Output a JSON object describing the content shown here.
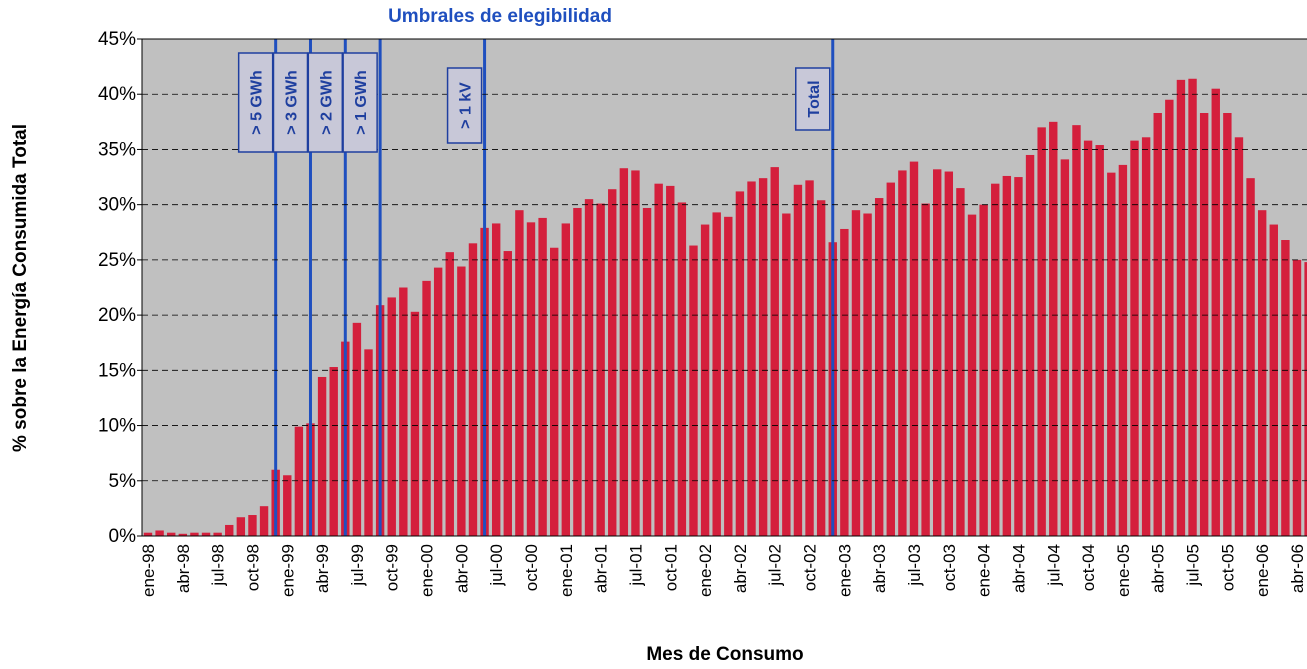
{
  "chart_data": {
    "type": "bar",
    "title": "Umbrales de elegibilidad",
    "xlabel": "Mes de Consumo",
    "ylabel": "% sobre la Energía Consumida Total",
    "color": "#d41f3c",
    "background": "#c0c0c0",
    "grid": true,
    "categories": [
      "ene-98",
      null,
      null,
      "abr-98",
      null,
      null,
      "jul-98",
      null,
      null,
      "oct-98",
      null,
      null,
      "ene-99",
      null,
      null,
      "abr-99",
      null,
      null,
      "jul-99",
      null,
      null,
      "oct-99",
      null,
      null,
      "ene-00",
      null,
      null,
      "abr-00",
      null,
      null,
      "jul-00",
      null,
      null,
      "oct-00",
      null,
      null,
      "ene-01",
      null,
      null,
      "abr-01",
      null,
      null,
      "jul-01",
      null,
      null,
      "oct-01",
      null,
      null,
      "ene-02",
      null,
      null,
      "abr-02",
      null,
      null,
      "jul-02",
      null,
      null,
      "oct-02",
      null,
      null,
      "ene-03",
      null,
      null,
      "abr-03",
      null,
      null,
      "jul-03",
      null,
      null,
      "oct-03",
      null,
      null,
      "ene-04",
      null,
      null,
      "abr-04",
      null,
      null,
      "jul-04",
      null,
      null,
      "oct-04",
      null,
      null,
      "ene-05",
      null,
      null,
      "abr-05",
      null,
      null,
      "jul-05",
      null,
      null,
      "oct-05",
      null,
      null,
      "ene-06",
      null,
      null,
      "abr-06",
      null
    ],
    "values": [
      0.3,
      0.5,
      0.3,
      0.2,
      0.3,
      0.3,
      0.3,
      1.0,
      1.7,
      1.9,
      2.7,
      6.0,
      5.5,
      9.9,
      10.2,
      14.4,
      15.3,
      17.6,
      19.3,
      16.9,
      20.9,
      21.6,
      22.5,
      20.3,
      23.1,
      24.3,
      25.7,
      24.4,
      26.5,
      27.9,
      28.3,
      25.8,
      29.5,
      28.4,
      28.8,
      26.1,
      28.3,
      29.7,
      30.5,
      30.1,
      31.4,
      33.3,
      33.1,
      29.7,
      31.9,
      31.7,
      30.2,
      26.3,
      28.2,
      29.3,
      28.9,
      31.2,
      32.1,
      32.4,
      33.4,
      29.2,
      31.8,
      32.2,
      30.4,
      26.6,
      27.8,
      29.5,
      29.2,
      30.6,
      32.0,
      33.1,
      33.9,
      30.1,
      33.2,
      33.0,
      31.5,
      29.1,
      30.0,
      31.9,
      32.6,
      32.5,
      34.5,
      37.0,
      37.5,
      34.1,
      37.2,
      35.8,
      35.4,
      32.9,
      33.6,
      35.8,
      36.1,
      38.3,
      39.5,
      41.3,
      41.4,
      38.3,
      40.5,
      38.3,
      36.1,
      32.4,
      29.5,
      28.2,
      26.8,
      25.0,
      24.8
    ],
    "ylim": [
      0,
      45
    ],
    "yticks": [
      {
        "value": 0,
        "label": "0%"
      },
      {
        "value": 5,
        "label": "5%"
      },
      {
        "value": 10,
        "label": "10%"
      },
      {
        "value": 15,
        "label": "15%"
      },
      {
        "value": 20,
        "label": "20%"
      },
      {
        "value": 25,
        "label": "25%"
      },
      {
        "value": 30,
        "label": "30%"
      },
      {
        "value": 35,
        "label": "35%"
      },
      {
        "value": 40,
        "label": "40%"
      },
      {
        "value": 45,
        "label": "45%"
      }
    ],
    "annotations": [
      {
        "label": "> 5 GWh"
      },
      {
        "label": "> 3 GWh"
      },
      {
        "label": "> 2 GWh"
      },
      {
        "label": "> 1 GWh"
      },
      {
        "label": "> 1 kV"
      },
      {
        "label": "Total"
      }
    ]
  }
}
